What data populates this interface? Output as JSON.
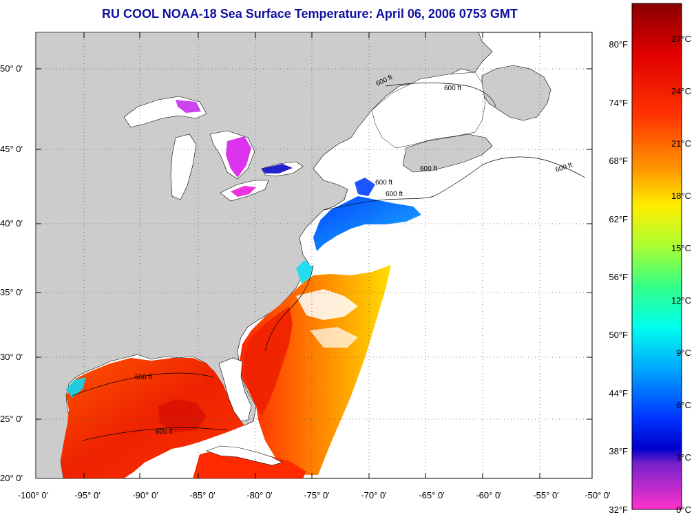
{
  "title": "RU COOL  NOAA-18  Sea Surface Temperature:  April 06, 2006 0753 GMT",
  "map": {
    "lat_labels": [
      "50° 0'",
      "45° 0'",
      "40° 0'",
      "35° 0'",
      "30° 0'",
      "25° 0'",
      "20° 0'"
    ],
    "lon_labels": [
      "-100° 0'",
      "-95° 0'",
      "-90° 0'",
      "-85° 0'",
      "-80° 0'",
      "-75° 0'",
      "-70° 0'",
      "-65° 0'",
      "-60° 0'",
      "-55° 0'",
      "-50° 0'"
    ],
    "contour_labels": [
      "600 ft",
      "600 ft",
      "600 ft",
      "600 ft",
      "600 ft",
      "600 ft",
      "600 ft",
      "600 ft"
    ],
    "colors": {
      "land": "#cccccc",
      "ocean_nodata": "#ffffff",
      "grid": "#555555"
    }
  },
  "colorbar": {
    "f_labels": [
      "80°F",
      "74°F",
      "68°F",
      "62°F",
      "56°F",
      "50°F",
      "44°F",
      "38°F",
      "32°F"
    ],
    "c_labels": [
      "27°C",
      "24°C",
      "21°C",
      "18°C",
      "15°C",
      "12°C",
      "9°C",
      "6°C",
      "3°C",
      "0°C"
    ]
  }
}
